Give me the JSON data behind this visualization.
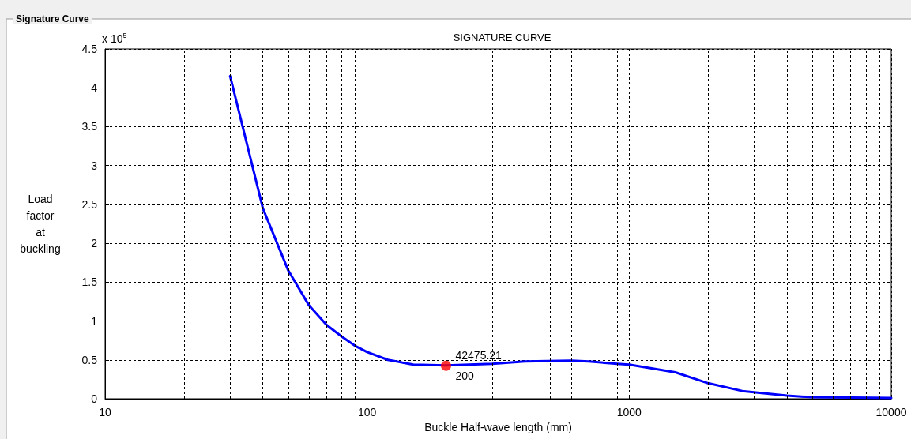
{
  "chart_data": {
    "type": "line",
    "title": "SIGNATURE CURVE",
    "xlabel": "Buckle Half-wave length (mm)",
    "ylabel": "Load\nfactor\nat\nbuckling",
    "annotations": [
      "Signature Curve",
      "x 10$^{5}$",
      {
        "text": "42475.21",
        "x": 200,
        "y": 0.4247521
      },
      {
        "text": "200",
        "x": 200,
        "y": 0.4247521
      }
    ],
    "series": [
      {
        "color": "#0000ff",
        "x": [
          30,
          40,
          50,
          60,
          70,
          80,
          90,
          100,
          120,
          150,
          200,
          300,
          400,
          600,
          700,
          900,
          1000,
          1500,
          2000,
          2700,
          4000,
          5000,
          10000
        ],
        "values": [
          4.15,
          2.45,
          1.65,
          1.2,
          0.95,
          0.8,
          0.68,
          0.6,
          0.5,
          0.44,
          0.43,
          0.45,
          0.48,
          0.49,
          0.48,
          0.45,
          0.44,
          0.34,
          0.2,
          0.1,
          0.04,
          0.02,
          0.01
        ]
      },
      {
        "type": "scatter",
        "color": "#ff0000",
        "marker": "circle",
        "x": [
          200
        ],
        "values": [
          0.4247521
        ]
      }
    ],
    "log": "x",
    "xlim": [
      10,
      10000
    ],
    "xticks": [
      10,
      100,
      1000,
      10000
    ],
    "ylim": [
      0,
      4.5
    ],
    "yticks": [
      0,
      0.5,
      1,
      1.5,
      2,
      2.5,
      3,
      3.5,
      4,
      4.5
    ],
    "grid": true,
    "line_style": "solid",
    "marker": "none"
  }
}
